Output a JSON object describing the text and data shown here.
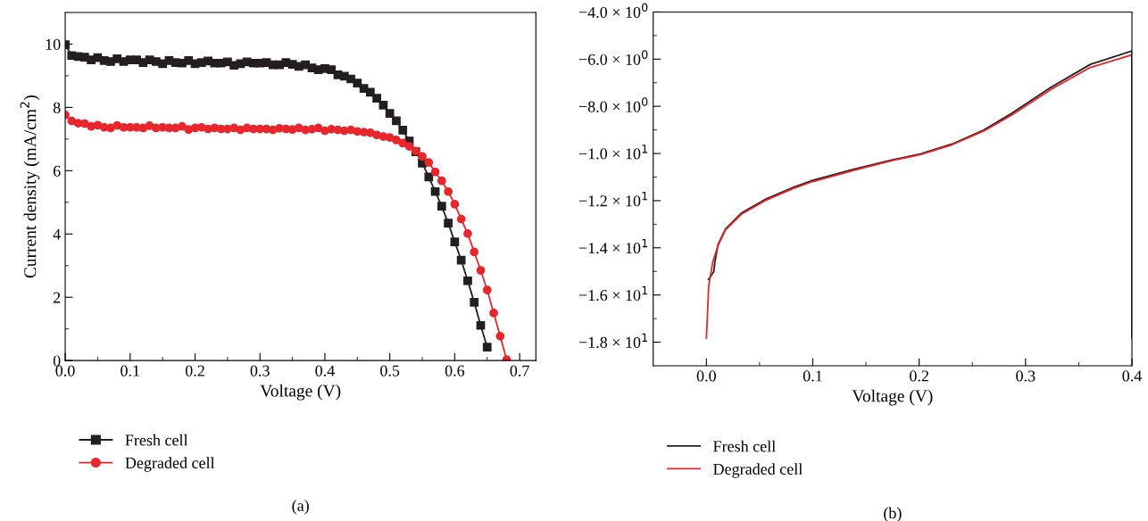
{
  "chart_data": [
    {
      "type": "line",
      "xlabel": "Voltage (V)",
      "ylabel": "Current density (mA/cm$^{2}$)",
      "annotations": [
        "(a)"
      ],
      "marker": "square",
      "legend": "bottom",
      "grid": false,
      "xlim": [
        0,
        0.725
      ],
      "ylim": [
        0,
        11
      ],
      "xticks": [
        {
          "value": 0,
          "label": "0.0"
        },
        {
          "value": 0.05,
          "label": null
        },
        {
          "value": 0.1,
          "label": "0.1"
        },
        {
          "value": 0.15,
          "label": null
        },
        {
          "value": 0.2,
          "label": "0.2"
        },
        {
          "value": 0.25,
          "label": null
        },
        {
          "value": 0.3,
          "label": "0.3"
        },
        {
          "value": 0.35,
          "label": null
        },
        {
          "value": 0.4,
          "label": "0.4"
        },
        {
          "value": 0.45,
          "label": null
        },
        {
          "value": 0.5,
          "label": "0.5"
        },
        {
          "value": 0.55,
          "label": null
        },
        {
          "value": 0.6,
          "label": "0.6"
        },
        {
          "value": 0.65,
          "label": null
        },
        {
          "value": 0.7,
          "label": "0.7"
        }
      ],
      "yticks": [
        0,
        {
          "value": 1,
          "label": null
        },
        2,
        {
          "value": 3,
          "label": null
        },
        4,
        {
          "value": 5,
          "label": null
        },
        6,
        {
          "value": 7,
          "label": null
        },
        8,
        {
          "value": 9,
          "label": null
        },
        10
      ],
      "series": [
        {
          "name": "Fresh cell",
          "color": "#231f20",
          "marker": "square",
          "x": [
            0,
            0.01,
            0.02,
            0.03,
            0.04,
            0.05,
            0.06,
            0.07,
            0.08,
            0.09,
            0.1,
            0.11,
            0.12,
            0.13,
            0.14,
            0.15,
            0.16,
            0.17,
            0.18,
            0.19,
            0.2,
            0.21,
            0.22,
            0.23,
            0.24,
            0.25,
            0.26,
            0.27,
            0.28,
            0.29,
            0.3,
            0.31,
            0.32,
            0.33,
            0.34,
            0.35,
            0.36,
            0.37,
            0.38,
            0.39,
            0.4,
            0.41,
            0.42,
            0.43,
            0.44,
            0.45,
            0.46,
            0.47,
            0.48,
            0.49,
            0.5,
            0.51,
            0.52,
            0.53,
            0.54,
            0.55,
            0.56,
            0.57,
            0.58,
            0.59,
            0.6,
            0.61,
            0.62,
            0.63,
            0.64,
            0.65
          ],
          "values": [
            9.98,
            9.64,
            9.61,
            9.59,
            9.5,
            9.57,
            9.48,
            9.45,
            9.54,
            9.45,
            9.5,
            9.5,
            9.42,
            9.5,
            9.45,
            9.38,
            9.48,
            9.42,
            9.4,
            9.48,
            9.38,
            9.42,
            9.47,
            9.4,
            9.4,
            9.44,
            9.33,
            9.38,
            9.44,
            9.4,
            9.4,
            9.42,
            9.35,
            9.35,
            9.42,
            9.36,
            9.3,
            9.35,
            9.25,
            9.19,
            9.23,
            9.19,
            9.03,
            8.99,
            8.9,
            8.77,
            8.6,
            8.48,
            8.29,
            8.07,
            7.81,
            7.58,
            7.28,
            6.94,
            6.6,
            6.24,
            5.8,
            5.34,
            4.88,
            4.34,
            3.75,
            3.17,
            2.52,
            1.84,
            1.11,
            0.42
          ]
        },
        {
          "name": "Degraded cell",
          "color": "#e8262b",
          "marker": "circle",
          "x": [
            0,
            0.01,
            0.02,
            0.03,
            0.04,
            0.05,
            0.06,
            0.07,
            0.08,
            0.09,
            0.1,
            0.11,
            0.12,
            0.13,
            0.14,
            0.15,
            0.16,
            0.17,
            0.18,
            0.19,
            0.2,
            0.21,
            0.22,
            0.23,
            0.24,
            0.25,
            0.26,
            0.27,
            0.28,
            0.29,
            0.3,
            0.31,
            0.32,
            0.33,
            0.34,
            0.35,
            0.36,
            0.37,
            0.38,
            0.39,
            0.4,
            0.41,
            0.42,
            0.43,
            0.44,
            0.45,
            0.46,
            0.47,
            0.48,
            0.49,
            0.5,
            0.51,
            0.52,
            0.53,
            0.54,
            0.55,
            0.56,
            0.57,
            0.58,
            0.59,
            0.6,
            0.61,
            0.62,
            0.63,
            0.64,
            0.65,
            0.66,
            0.67,
            0.68
          ],
          "values": [
            7.76,
            7.57,
            7.5,
            7.49,
            7.4,
            7.44,
            7.37,
            7.35,
            7.43,
            7.37,
            7.37,
            7.37,
            7.35,
            7.42,
            7.35,
            7.37,
            7.35,
            7.35,
            7.4,
            7.3,
            7.35,
            7.37,
            7.32,
            7.35,
            7.32,
            7.32,
            7.35,
            7.29,
            7.35,
            7.32,
            7.32,
            7.32,
            7.29,
            7.34,
            7.32,
            7.3,
            7.35,
            7.29,
            7.31,
            7.35,
            7.26,
            7.31,
            7.29,
            7.26,
            7.29,
            7.24,
            7.22,
            7.2,
            7.13,
            7.08,
            7.05,
            6.97,
            6.87,
            6.77,
            6.62,
            6.45,
            6.26,
            5.96,
            5.68,
            5.34,
            4.94,
            4.47,
            4.01,
            3.43,
            2.85,
            2.23,
            1.5,
            0.77,
            0.03
          ]
        }
      ]
    },
    {
      "type": "line",
      "xlabel": "Voltage (V)",
      "annotations": [
        "(b)"
      ],
      "marker": "none",
      "legend": "bottom",
      "grid": false,
      "xlim": [
        -0.05,
        0.4
      ],
      "ylim": [
        -19,
        -4
      ],
      "xticks": [
        {
          "value": 0,
          "label": "0.0"
        },
        {
          "value": 0.05,
          "label": null
        },
        {
          "value": 0.1,
          "label": "0.1"
        },
        {
          "value": 0.15,
          "label": null
        },
        {
          "value": 0.2,
          "label": "0.2"
        },
        {
          "value": 0.25,
          "label": null
        },
        {
          "value": 0.3,
          "label": "0.3"
        },
        {
          "value": 0.35,
          "label": null
        },
        {
          "value": 0.4,
          "label": "0.4"
        }
      ],
      "yticks": [
        {
          "value": -4,
          "label": "−4.0 × 10$^{0}$"
        },
        {
          "value": -5,
          "label": null
        },
        {
          "value": -6,
          "label": "−6.0 × 10$^{0}$"
        },
        {
          "value": -7,
          "label": null
        },
        {
          "value": -8,
          "label": "−8.0 × 10$^{0}$"
        },
        {
          "value": -9,
          "label": null
        },
        {
          "value": -10,
          "label": "−1.0 × 10$^{1}$"
        },
        {
          "value": -11,
          "label": null
        },
        {
          "value": -12,
          "label": "−1.2 × 10$^{1}$"
        },
        {
          "value": -13,
          "label": null
        },
        {
          "value": -14,
          "label": "−1.4 × 10$^{1}$"
        },
        {
          "value": -15,
          "label": null
        },
        {
          "value": -16,
          "label": "−1.6 × 10$^{1}$"
        },
        {
          "value": -17,
          "label": null
        },
        {
          "value": -18,
          "label": "−1.8 × 10$^{1}$"
        }
      ],
      "series": [
        {
          "name": "Fresh cell",
          "color": "#231f20",
          "x": [
            0.002,
            0.007,
            0.008,
            0.011,
            0.018,
            0.033,
            0.056,
            0.082,
            0.1,
            0.138,
            0.175,
            0.201,
            0.231,
            0.261,
            0.287,
            0.324,
            0.361,
            0.4,
            0.4
          ],
          "values": [
            -15.34,
            -15.0,
            -14.6,
            -13.85,
            -13.2,
            -12.52,
            -11.93,
            -11.43,
            -11.14,
            -10.67,
            -10.27,
            -10.02,
            -9.6,
            -9.0,
            -8.3,
            -7.19,
            -6.22,
            -5.65,
            -17.8
          ]
        },
        {
          "name": "Degraded cell",
          "color": "#e8262b",
          "x": [
            0,
            0.0022,
            0.006,
            0.011,
            0.018,
            0.033,
            0.056,
            0.082,
            0.1,
            0.138,
            0.175,
            0.201,
            0.231,
            0.261,
            0.287,
            0.324,
            0.361,
            0.4
          ],
          "values": [
            -17.83,
            -15.6,
            -14.6,
            -13.9,
            -13.24,
            -12.57,
            -11.98,
            -11.48,
            -11.19,
            -10.72,
            -10.3,
            -10.05,
            -9.63,
            -9.04,
            -8.37,
            -7.28,
            -6.35,
            -5.82
          ]
        }
      ]
    }
  ]
}
